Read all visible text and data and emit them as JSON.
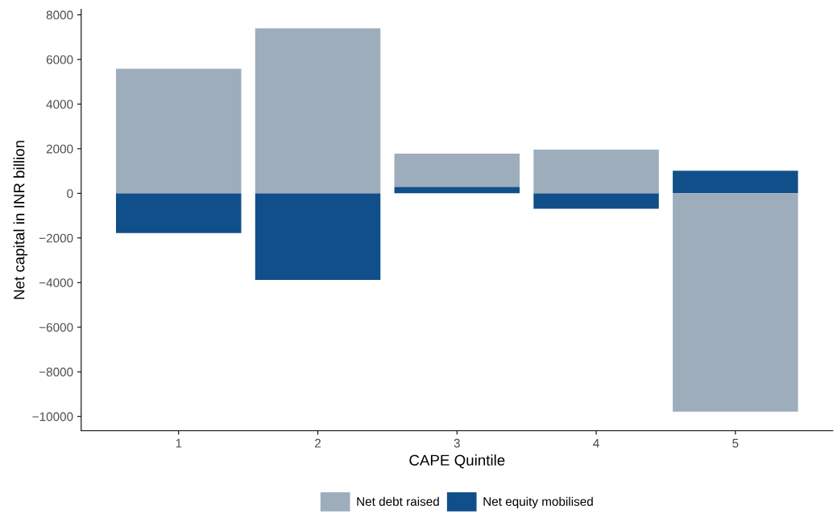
{
  "chart_data": {
    "type": "bar",
    "stacked": true,
    "xlabel": "CAPE Quintile",
    "ylabel": "Net capital in INR billion",
    "categories": [
      "1",
      "2",
      "3",
      "4",
      "5"
    ],
    "series": [
      {
        "name": "Net equity mobilised",
        "color": "#114f8a",
        "values": [
          -1780,
          -3880,
          290,
          -690,
          1010
        ]
      },
      {
        "name": "Net debt raised",
        "color": "#9dadbb",
        "values": [
          5580,
          7390,
          1490,
          1960,
          -9780
        ]
      }
    ],
    "ylim": [
      -10640,
      8250
    ],
    "yticks": [
      {
        "value": -10000,
        "label": "−10000"
      },
      {
        "value": -8000,
        "label": "−8000"
      },
      {
        "value": -6000,
        "label": "−6000"
      },
      {
        "value": -4000,
        "label": "−4000"
      },
      {
        "value": -2000,
        "label": "−2000"
      },
      0,
      2000,
      4000,
      6000,
      8000
    ],
    "grid": false,
    "legend": "bottom"
  }
}
